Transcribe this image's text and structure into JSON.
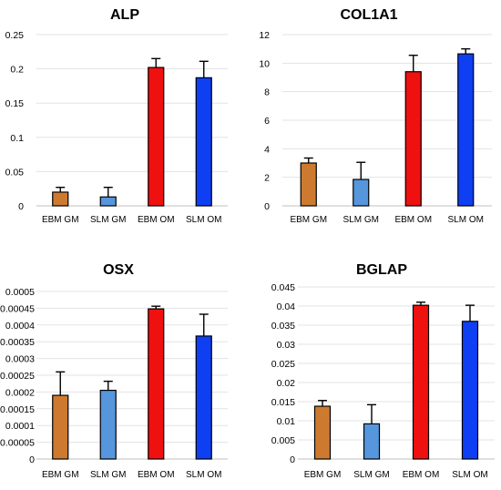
{
  "chart_data": [
    {
      "type": "bar",
      "title": "ALP",
      "categories": [
        "EBM GM",
        "SLM GM",
        "EBM OM",
        "SLM OM"
      ],
      "values": [
        0.02,
        0.013,
        0.202,
        0.187
      ],
      "errors": [
        0.007,
        0.014,
        0.013,
        0.024
      ],
      "yticks": [
        "0",
        "0.05",
        "0.1",
        "0.15",
        "0.2",
        "0.25"
      ],
      "ylim": [
        0,
        0.25
      ],
      "grid": true,
      "colors": [
        "#cd7a30",
        "#5596dc",
        "#ef1010",
        "#0f3ff2"
      ]
    },
    {
      "type": "bar",
      "title": "COL1A1",
      "categories": [
        "EBM GM",
        "SLM GM",
        "EBM OM",
        "SLM OM"
      ],
      "values": [
        3.0,
        1.85,
        9.4,
        10.65
      ],
      "errors": [
        0.35,
        1.2,
        1.15,
        0.35
      ],
      "yticks": [
        "0",
        "2",
        "4",
        "6",
        "8",
        "10",
        "12"
      ],
      "ylim": [
        0,
        12
      ],
      "grid": true,
      "colors": [
        "#cd7a30",
        "#5596dc",
        "#ef1010",
        "#0f3ff2"
      ]
    },
    {
      "type": "bar",
      "title": "OSX",
      "categories": [
        "EBM GM",
        "SLM GM",
        "EBM OM",
        "SLM OM"
      ],
      "values": [
        0.00019,
        0.000205,
        0.000448,
        0.000367
      ],
      "errors": [
        7e-05,
        2.7e-05,
        8e-06,
        6.5e-05
      ],
      "yticks": [
        "0",
        "0.00005",
        "0.0001",
        "0.00015",
        "0.0002",
        "0.00025",
        "0.0003",
        "0.00035",
        "0.0004",
        "0.00045",
        "0.0005"
      ],
      "ylim": [
        0,
        0.0005
      ],
      "grid": true,
      "colors": [
        "#cd7a30",
        "#5596dc",
        "#ef1010",
        "#0f3ff2"
      ]
    },
    {
      "type": "bar",
      "title": "BGLAP",
      "categories": [
        "EBM GM",
        "SLM GM",
        "EBM OM",
        "SLM OM"
      ],
      "values": [
        0.0138,
        0.0092,
        0.0402,
        0.036
      ],
      "errors": [
        0.0015,
        0.005,
        0.0008,
        0.0042
      ],
      "yticks": [
        "0",
        "0.005",
        "0.01",
        "0.015",
        "0.02",
        "0.025",
        "0.03",
        "0.035",
        "0.04",
        "0.045"
      ],
      "ylim": [
        0,
        0.045
      ],
      "grid": true,
      "colors": [
        "#cd7a30",
        "#5596dc",
        "#ef1010",
        "#0f3ff2"
      ]
    }
  ]
}
